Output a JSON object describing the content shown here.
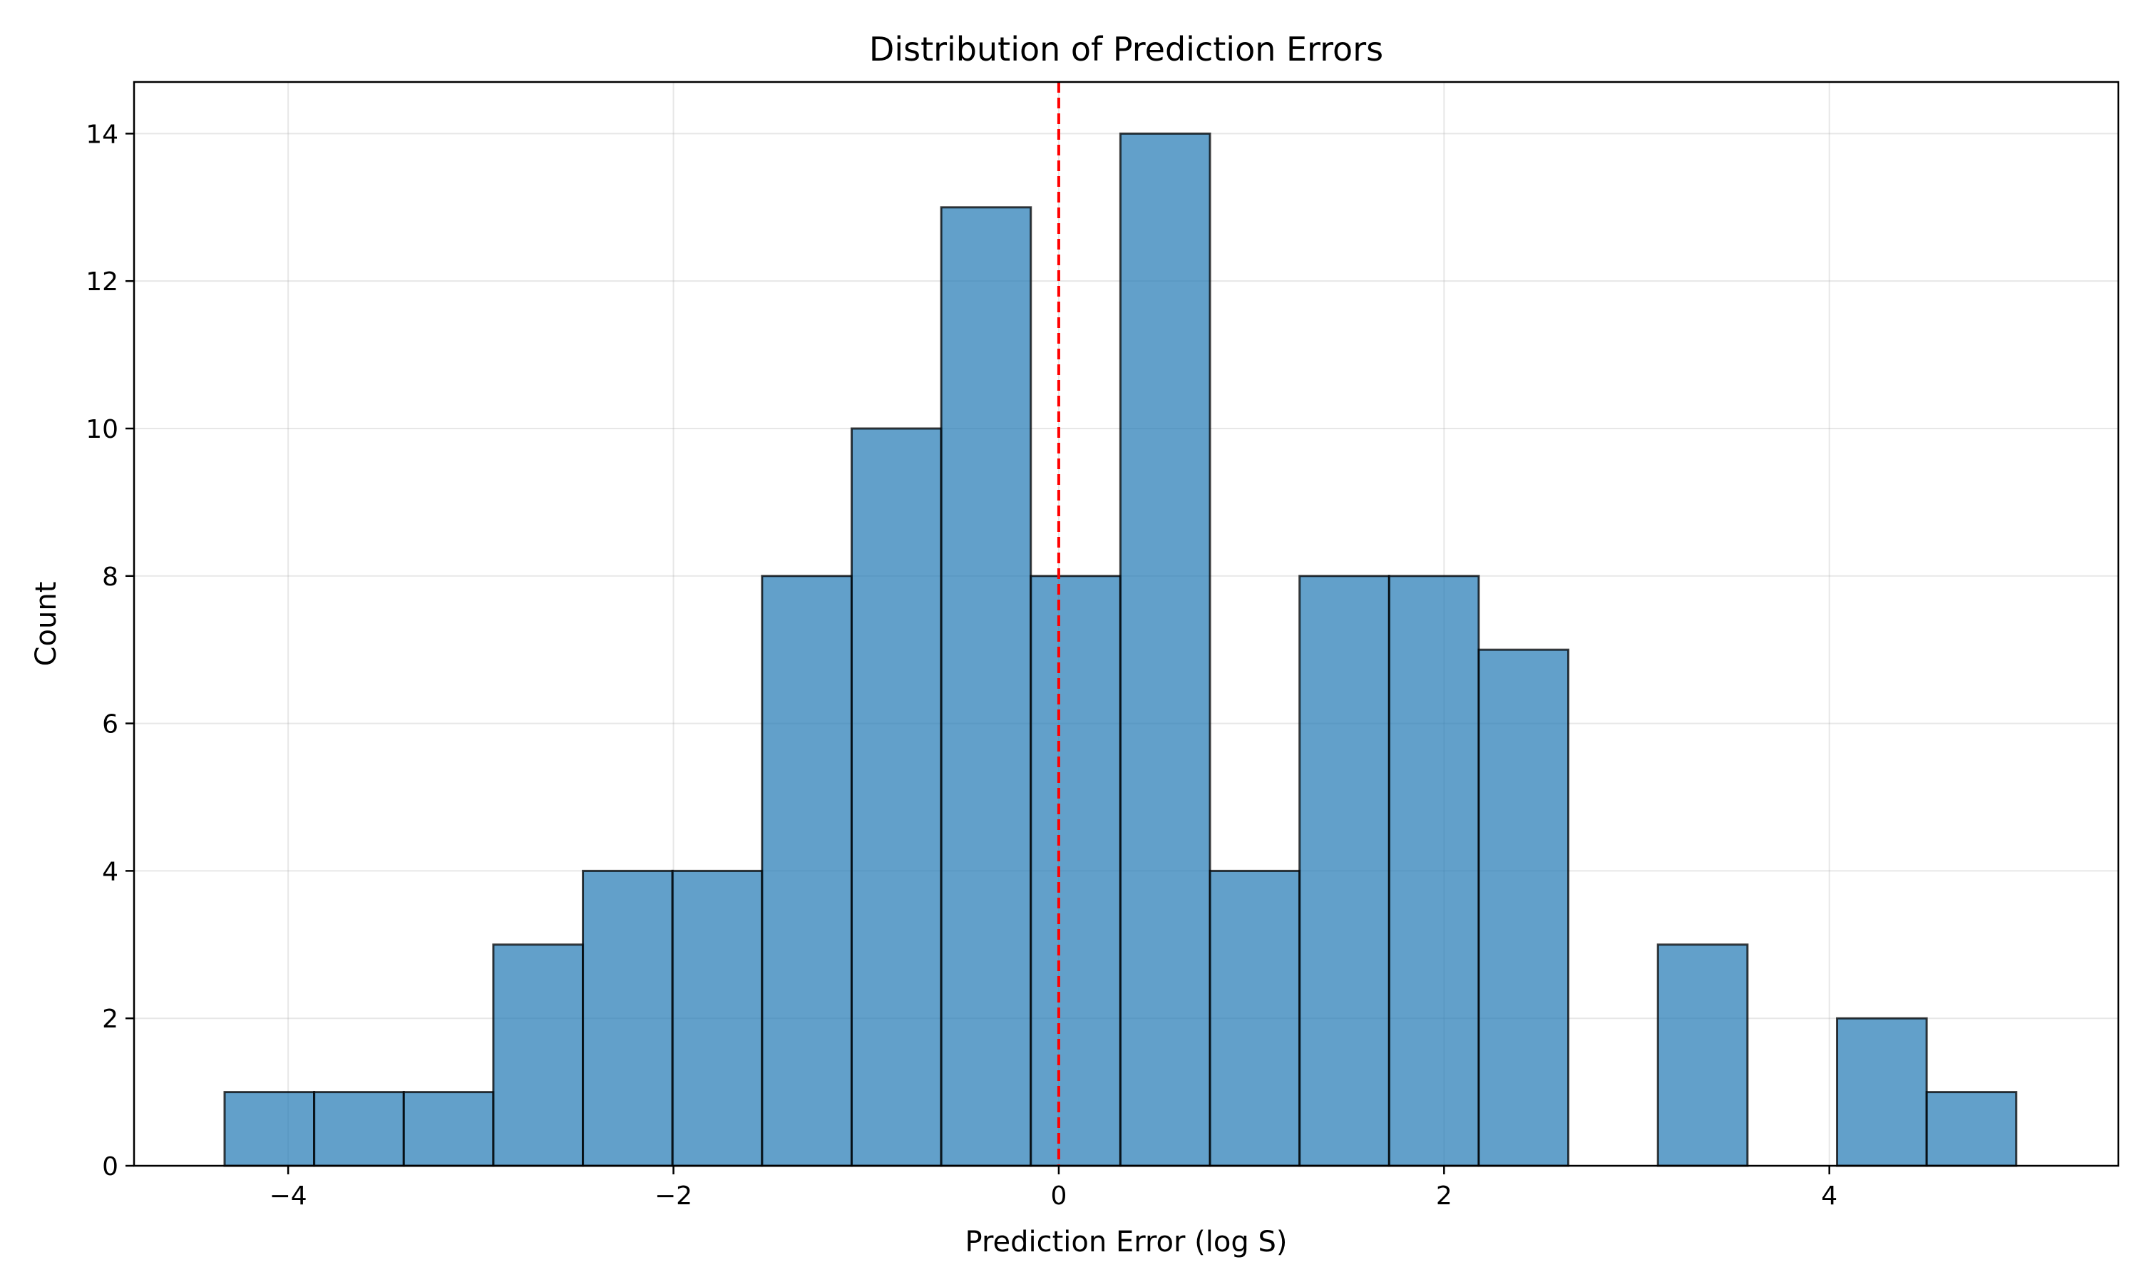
{
  "chart_data": {
    "type": "bar",
    "title": "Distribution of Prediction Errors",
    "xlabel": "Prediction Error (log S)",
    "ylabel": "Count",
    "xlim": [
      -4.8,
      5.5
    ],
    "ylim": [
      0,
      14.7
    ],
    "xticks": [
      -4,
      -2,
      0,
      2,
      4
    ],
    "xtick_labels": [
      "−4",
      "−2",
      "0",
      "2",
      "4"
    ],
    "yticks": [
      0,
      2,
      4,
      6,
      8,
      10,
      12,
      14
    ],
    "ytick_labels": [
      "0",
      "2",
      "4",
      "6",
      "8",
      "10",
      "12",
      "14"
    ],
    "grid": true,
    "bar_color": "#1f77b4",
    "edge_color": "#000000",
    "bin_edges": [
      -4.33,
      -3.865,
      -3.4,
      -2.935,
      -2.47,
      -2.005,
      -1.54,
      -1.075,
      -0.61,
      -0.145,
      0.32,
      0.785,
      1.25,
      1.715,
      2.18,
      2.645,
      3.11,
      3.575,
      4.04,
      4.505,
      4.97
    ],
    "counts": [
      1,
      1,
      1,
      3,
      4,
      4,
      8,
      10,
      13,
      8,
      14,
      4,
      8,
      8,
      7,
      0,
      3,
      0,
      2,
      1
    ],
    "reference_line": {
      "x": 0,
      "color": "#ff0000",
      "style": "dashed"
    }
  }
}
